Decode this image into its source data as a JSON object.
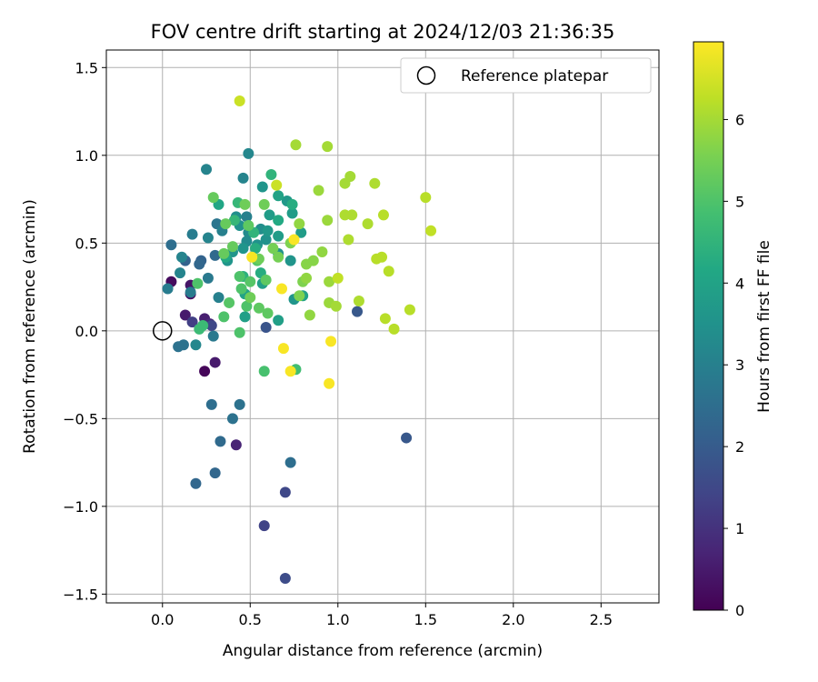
{
  "chart_data": {
    "type": "scatter",
    "title": "FOV centre drift starting at 2024/12/03 21:36:35",
    "xlabel": "Angular distance from reference (arcmin)",
    "ylabel": "Rotation from reference (arcmin)",
    "xlim": [
      -0.32,
      2.83
    ],
    "ylim": [
      -1.55,
      1.6
    ],
    "xticks": [
      0.0,
      0.5,
      1.0,
      1.5,
      2.0,
      2.5
    ],
    "yticks": [
      -1.5,
      -1.0,
      -0.5,
      0.0,
      0.5,
      1.0,
      1.5
    ],
    "xtick_labels": [
      "0.0",
      "0.5",
      "1.0",
      "1.5",
      "2.0",
      "2.5"
    ],
    "ytick_labels": [
      "−1.5",
      "−1.0",
      "−0.5",
      "0.0",
      "0.5",
      "1.0",
      "1.5"
    ],
    "grid": true,
    "colormap": "viridis",
    "colorbar": {
      "label": "Hours from first FF file",
      "range": [
        0,
        6.95
      ],
      "ticks": [
        0,
        1,
        2,
        3,
        4,
        5,
        6
      ],
      "tick_labels": [
        "0",
        "1",
        "2",
        "3",
        "4",
        "5",
        "6"
      ]
    },
    "legend": {
      "position": "top-right",
      "entries": [
        {
          "label": "Reference platepar",
          "marker": "open-circle"
        }
      ]
    },
    "reference_point": {
      "x": 0.0,
      "y": 0.0
    },
    "points": [
      {
        "x": 0.05,
        "y": 0.28,
        "c": 0.2
      },
      {
        "x": 0.16,
        "y": 0.21,
        "c": 0.3
      },
      {
        "x": 0.13,
        "y": 0.09,
        "c": 0.5
      },
      {
        "x": 0.24,
        "y": 0.07,
        "c": 0.6
      },
      {
        "x": 0.27,
        "y": 0.04,
        "c": 0.8
      },
      {
        "x": 0.24,
        "y": -0.23,
        "c": 0.1
      },
      {
        "x": 0.3,
        "y": -0.18,
        "c": 0.5
      },
      {
        "x": 0.42,
        "y": -0.65,
        "c": 0.7
      },
      {
        "x": 0.16,
        "y": 0.26,
        "c": 0.4
      },
      {
        "x": 0.17,
        "y": 0.05,
        "c": 1.3
      },
      {
        "x": 0.28,
        "y": 0.03,
        "c": 1.5
      },
      {
        "x": 0.58,
        "y": -1.11,
        "c": 1.4
      },
      {
        "x": 0.7,
        "y": -0.92,
        "c": 1.5
      },
      {
        "x": 0.7,
        "y": -1.41,
        "c": 1.6
      },
      {
        "x": 0.59,
        "y": 0.02,
        "c": 1.8
      },
      {
        "x": 1.11,
        "y": 0.11,
        "c": 1.9
      },
      {
        "x": 1.39,
        "y": -0.61,
        "c": 1.9
      },
      {
        "x": 0.3,
        "y": -0.81,
        "c": 2.3
      },
      {
        "x": 0.19,
        "y": -0.87,
        "c": 2.3
      },
      {
        "x": 0.33,
        "y": -0.63,
        "c": 2.4
      },
      {
        "x": 0.73,
        "y": -0.75,
        "c": 2.5
      },
      {
        "x": 0.28,
        "y": -0.42,
        "c": 2.5
      },
      {
        "x": 0.44,
        "y": -0.42,
        "c": 2.6
      },
      {
        "x": 0.4,
        "y": -0.5,
        "c": 2.6
      },
      {
        "x": 0.13,
        "y": 0.4,
        "c": 2.2
      },
      {
        "x": 0.22,
        "y": 0.4,
        "c": 2.2
      },
      {
        "x": 0.21,
        "y": 0.38,
        "c": 2.3
      },
      {
        "x": 0.3,
        "y": 0.43,
        "c": 2.4
      },
      {
        "x": 0.05,
        "y": 0.49,
        "c": 2.5
      },
      {
        "x": 0.12,
        "y": -0.08,
        "c": 2.6
      },
      {
        "x": 0.09,
        "y": -0.09,
        "c": 2.6
      },
      {
        "x": 0.29,
        "y": -0.03,
        "c": 2.8
      },
      {
        "x": 0.03,
        "y": 0.24,
        "c": 2.9
      },
      {
        "x": 0.16,
        "y": 0.22,
        "c": 2.9
      },
      {
        "x": 0.17,
        "y": 0.55,
        "c": 2.9
      },
      {
        "x": 0.26,
        "y": 0.3,
        "c": 2.8
      },
      {
        "x": 0.31,
        "y": 0.61,
        "c": 2.7
      },
      {
        "x": 0.34,
        "y": 0.57,
        "c": 3.0
      },
      {
        "x": 0.32,
        "y": 0.19,
        "c": 3.0
      },
      {
        "x": 0.48,
        "y": 0.65,
        "c": 3.0
      },
      {
        "x": 0.26,
        "y": 0.53,
        "c": 3.1
      },
      {
        "x": 0.1,
        "y": 0.33,
        "c": 3.1
      },
      {
        "x": 0.25,
        "y": 0.92,
        "c": 3.1
      },
      {
        "x": 0.46,
        "y": 0.87,
        "c": 3.1
      },
      {
        "x": 0.49,
        "y": 1.01,
        "c": 3.2
      },
      {
        "x": 0.19,
        "y": -0.08,
        "c": 3.2
      },
      {
        "x": 0.49,
        "y": 0.56,
        "c": 3.3
      },
      {
        "x": 0.48,
        "y": 0.51,
        "c": 3.3
      },
      {
        "x": 0.56,
        "y": 0.58,
        "c": 3.4
      },
      {
        "x": 0.42,
        "y": 0.65,
        "c": 3.4
      },
      {
        "x": 0.44,
        "y": 0.6,
        "c": 3.5
      },
      {
        "x": 0.54,
        "y": 0.49,
        "c": 3.5
      },
      {
        "x": 0.59,
        "y": 0.52,
        "c": 3.5
      },
      {
        "x": 0.66,
        "y": 0.44,
        "c": 3.5
      },
      {
        "x": 0.4,
        "y": 0.45,
        "c": 3.6
      },
      {
        "x": 0.37,
        "y": 0.4,
        "c": 3.6
      },
      {
        "x": 0.73,
        "y": 0.4,
        "c": 3.6
      },
      {
        "x": 0.75,
        "y": 0.18,
        "c": 3.6
      },
      {
        "x": 0.46,
        "y": 0.47,
        "c": 3.6
      },
      {
        "x": 0.11,
        "y": 0.42,
        "c": 3.1
      },
      {
        "x": 0.57,
        "y": 0.82,
        "c": 3.6
      },
      {
        "x": 0.6,
        "y": 0.57,
        "c": 3.7
      },
      {
        "x": 0.71,
        "y": 0.74,
        "c": 3.7
      },
      {
        "x": 0.61,
        "y": 0.66,
        "c": 3.8
      },
      {
        "x": 0.74,
        "y": 0.67,
        "c": 3.8
      },
      {
        "x": 0.79,
        "y": 0.56,
        "c": 3.8
      },
      {
        "x": 0.66,
        "y": 0.54,
        "c": 3.8
      },
      {
        "x": 0.66,
        "y": 0.06,
        "c": 3.9
      },
      {
        "x": 0.47,
        "y": 0.08,
        "c": 3.9
      },
      {
        "x": 0.57,
        "y": 0.27,
        "c": 3.9
      },
      {
        "x": 0.8,
        "y": 0.2,
        "c": 4.0
      },
      {
        "x": 0.47,
        "y": 0.21,
        "c": 4.0
      },
      {
        "x": 0.66,
        "y": 0.77,
        "c": 4.0
      },
      {
        "x": 0.32,
        "y": 0.72,
        "c": 4.1
      },
      {
        "x": 0.36,
        "y": 0.42,
        "c": 4.2
      },
      {
        "x": 0.66,
        "y": 0.63,
        "c": 4.2
      },
      {
        "x": 0.56,
        "y": 0.33,
        "c": 4.3
      },
      {
        "x": 0.53,
        "y": 0.47,
        "c": 4.3
      },
      {
        "x": 0.74,
        "y": 0.72,
        "c": 4.3
      },
      {
        "x": 0.46,
        "y": 0.31,
        "c": 4.4
      },
      {
        "x": 0.52,
        "y": 0.56,
        "c": 4.5
      },
      {
        "x": 0.62,
        "y": 0.89,
        "c": 4.5
      },
      {
        "x": 0.43,
        "y": 0.73,
        "c": 4.6
      },
      {
        "x": 0.41,
        "y": 0.63,
        "c": 4.6
      },
      {
        "x": 0.21,
        "y": 0.01,
        "c": 4.7
      },
      {
        "x": 0.23,
        "y": 0.03,
        "c": 4.7
      },
      {
        "x": 0.76,
        "y": -0.22,
        "c": 4.8
      },
      {
        "x": 0.58,
        "y": -0.23,
        "c": 4.9
      },
      {
        "x": 0.2,
        "y": 0.27,
        "c": 5.0
      },
      {
        "x": 0.35,
        "y": 0.08,
        "c": 5.0
      },
      {
        "x": 0.44,
        "y": 0.31,
        "c": 5.0
      },
      {
        "x": 0.45,
        "y": 0.24,
        "c": 5.0
      },
      {
        "x": 0.48,
        "y": 0.14,
        "c": 5.0
      },
      {
        "x": 0.44,
        "y": -0.01,
        "c": 5.0
      },
      {
        "x": 0.38,
        "y": 0.16,
        "c": 5.1
      },
      {
        "x": 0.5,
        "y": 0.28,
        "c": 5.1
      },
      {
        "x": 0.54,
        "y": 0.4,
        "c": 5.1
      },
      {
        "x": 0.55,
        "y": 0.13,
        "c": 5.2
      },
      {
        "x": 0.6,
        "y": 0.1,
        "c": 5.2
      },
      {
        "x": 0.59,
        "y": 0.29,
        "c": 5.2
      },
      {
        "x": 0.49,
        "y": 0.6,
        "c": 5.2
      },
      {
        "x": 0.35,
        "y": 0.44,
        "c": 5.3
      },
      {
        "x": 0.36,
        "y": 0.61,
        "c": 5.3
      },
      {
        "x": 0.4,
        "y": 0.48,
        "c": 5.3
      },
      {
        "x": 0.29,
        "y": 0.76,
        "c": 5.3
      },
      {
        "x": 0.5,
        "y": 0.19,
        "c": 5.4
      },
      {
        "x": 0.55,
        "y": 0.41,
        "c": 5.4
      },
      {
        "x": 0.47,
        "y": 0.72,
        "c": 5.4
      },
      {
        "x": 0.58,
        "y": 0.72,
        "c": 5.4
      },
      {
        "x": 0.63,
        "y": 0.47,
        "c": 5.5
      },
      {
        "x": 0.66,
        "y": 0.42,
        "c": 5.5
      },
      {
        "x": 0.8,
        "y": 0.28,
        "c": 5.6
      },
      {
        "x": 0.78,
        "y": 0.2,
        "c": 5.6
      },
      {
        "x": 0.73,
        "y": 0.5,
        "c": 5.6
      },
      {
        "x": 0.82,
        "y": 0.38,
        "c": 5.7
      },
      {
        "x": 0.86,
        "y": 0.4,
        "c": 5.7
      },
      {
        "x": 0.84,
        "y": 0.09,
        "c": 5.8
      },
      {
        "x": 0.91,
        "y": 0.45,
        "c": 5.8
      },
      {
        "x": 0.78,
        "y": 0.61,
        "c": 5.8
      },
      {
        "x": 0.82,
        "y": 0.3,
        "c": 5.8
      },
      {
        "x": 0.89,
        "y": 0.8,
        "c": 5.9
      },
      {
        "x": 0.94,
        "y": 0.63,
        "c": 5.9
      },
      {
        "x": 0.95,
        "y": 0.28,
        "c": 5.9
      },
      {
        "x": 0.95,
        "y": 0.16,
        "c": 5.9
      },
      {
        "x": 0.99,
        "y": 0.14,
        "c": 6.0
      },
      {
        "x": 0.94,
        "y": 1.05,
        "c": 6.0
      },
      {
        "x": 0.76,
        "y": 1.06,
        "c": 6.0
      },
      {
        "x": 1.04,
        "y": 0.84,
        "c": 6.0
      },
      {
        "x": 1.07,
        "y": 0.88,
        "c": 6.0
      },
      {
        "x": 1.04,
        "y": 0.66,
        "c": 6.1
      },
      {
        "x": 1.06,
        "y": 0.52,
        "c": 6.1
      },
      {
        "x": 1.08,
        "y": 0.66,
        "c": 6.1
      },
      {
        "x": 1.12,
        "y": 0.17,
        "c": 6.1
      },
      {
        "x": 1.17,
        "y": 0.61,
        "c": 6.1
      },
      {
        "x": 1.21,
        "y": 0.84,
        "c": 6.1
      },
      {
        "x": 1.22,
        "y": 0.41,
        "c": 6.2
      },
      {
        "x": 1.25,
        "y": 0.42,
        "c": 6.2
      },
      {
        "x": 1.26,
        "y": 0.66,
        "c": 6.2
      },
      {
        "x": 1.27,
        "y": 0.07,
        "c": 6.2
      },
      {
        "x": 1.29,
        "y": 0.34,
        "c": 6.2
      },
      {
        "x": 1.32,
        "y": 0.01,
        "c": 6.2
      },
      {
        "x": 1.41,
        "y": 0.12,
        "c": 6.2
      },
      {
        "x": 1.5,
        "y": 0.76,
        "c": 6.2
      },
      {
        "x": 1.53,
        "y": 0.57,
        "c": 6.3
      },
      {
        "x": 1.0,
        "y": 0.3,
        "c": 6.3
      },
      {
        "x": 0.44,
        "y": 1.31,
        "c": 6.4
      },
      {
        "x": 0.65,
        "y": 0.83,
        "c": 6.4
      },
      {
        "x": 0.51,
        "y": 0.42,
        "c": 6.9
      },
      {
        "x": 0.68,
        "y": 0.24,
        "c": 6.9
      },
      {
        "x": 0.69,
        "y": -0.1,
        "c": 6.9
      },
      {
        "x": 0.73,
        "y": -0.23,
        "c": 6.9
      },
      {
        "x": 0.75,
        "y": 0.52,
        "c": 6.9
      },
      {
        "x": 0.96,
        "y": -0.06,
        "c": 6.9
      },
      {
        "x": 0.95,
        "y": -0.3,
        "c": 6.9
      }
    ]
  }
}
